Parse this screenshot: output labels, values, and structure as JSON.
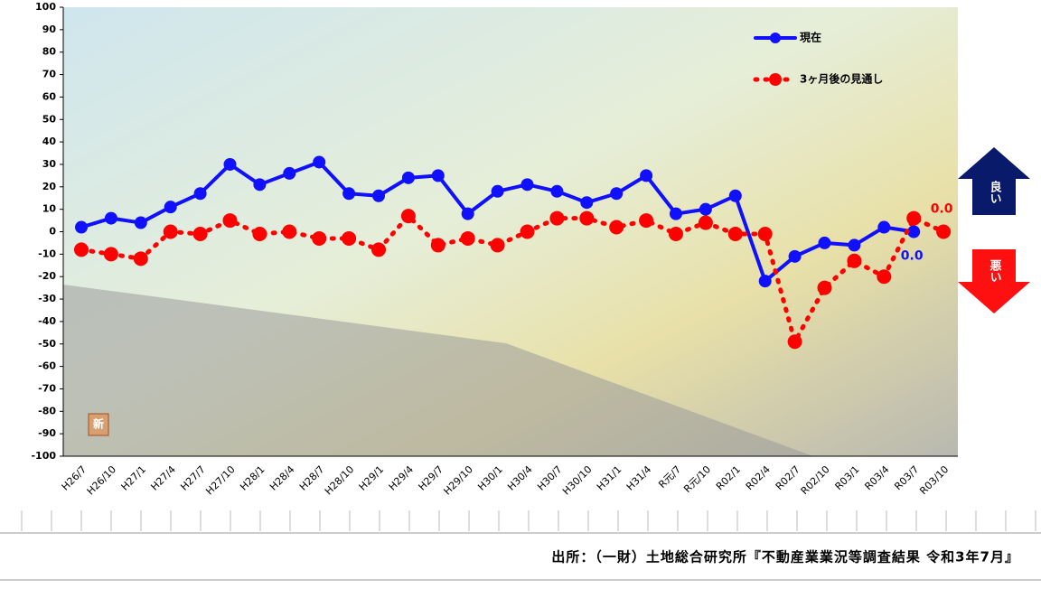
{
  "chart_data": {
    "type": "line",
    "categories": [
      "H26/7",
      "H26/10",
      "H27/1",
      "H27/4",
      "H27/7",
      "H27/10",
      "H28/1",
      "H28/4",
      "H28/7",
      "H28/10",
      "H29/1",
      "H29/4",
      "H29/7",
      "H29/10",
      "H30/1",
      "H30/4",
      "H30/7",
      "H30/10",
      "H31/1",
      "H31/4",
      "R元/7",
      "R元/10",
      "R02/1",
      "R02/4",
      "R02/7",
      "R02/10",
      "R03/1",
      "R03/4",
      "R03/7",
      "R03/10"
    ],
    "series": [
      {
        "name": "現在",
        "color": "#1010ff",
        "style": "solid",
        "values": [
          2,
          6,
          4,
          11,
          17,
          30,
          21,
          26,
          31,
          17,
          16,
          24,
          25,
          8,
          18,
          21,
          18,
          13,
          17,
          25,
          8,
          10,
          16,
          -22,
          -11,
          -5,
          -6,
          2,
          0,
          null
        ],
        "value_labels": [
          null,
          null,
          null,
          null,
          null,
          null,
          null,
          null,
          null,
          null,
          null,
          null,
          null,
          null,
          null,
          null,
          null,
          null,
          null,
          null,
          null,
          null,
          null,
          null,
          null,
          null,
          null,
          null,
          "0.0",
          null
        ]
      },
      {
        "name": "3ヶ月後の見通し",
        "color": "#ff0000",
        "style": "dotted",
        "values": [
          -8,
          -10,
          -12,
          0,
          -1,
          5,
          -1,
          0,
          -3,
          -3,
          -8,
          7,
          -6,
          -3,
          -6,
          0,
          6,
          6,
          2,
          5,
          -1,
          4,
          -1,
          -1,
          -49,
          -25,
          -13,
          -20,
          6,
          0
        ],
        "value_labels": [
          null,
          null,
          null,
          null,
          null,
          null,
          null,
          null,
          null,
          null,
          null,
          null,
          null,
          null,
          null,
          null,
          null,
          null,
          null,
          null,
          null,
          null,
          null,
          null,
          null,
          null,
          null,
          null,
          null,
          "0.0"
        ]
      }
    ],
    "ylim": [
      -100,
      100
    ],
    "yticks": [
      -100,
      -90,
      -80,
      -70,
      -60,
      -50,
      -40,
      -30,
      -20,
      -10,
      0,
      10,
      20,
      30,
      40,
      50,
      60,
      70,
      80,
      90,
      100
    ],
    "annotations": {
      "good": "良い",
      "bad": "悪い",
      "badge": "新"
    },
    "source": "出所：（一財）土地総合研究所『不動産業業況等調査結果 令和3年7月』"
  }
}
